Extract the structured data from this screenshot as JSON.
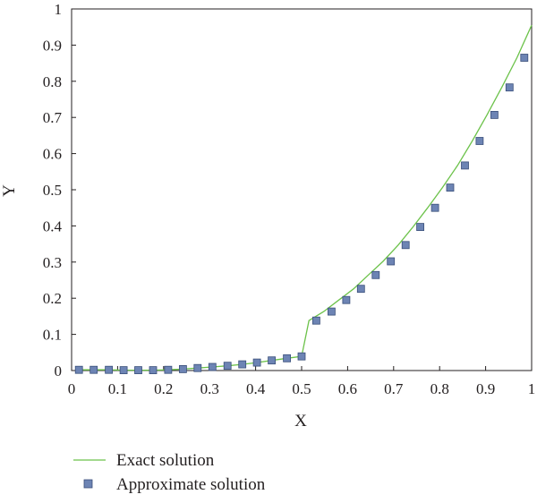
{
  "chart_data": {
    "type": "line",
    "title": "",
    "xlabel": "X",
    "ylabel": "Y",
    "xlim": [
      0,
      1
    ],
    "ylim": [
      0,
      1
    ],
    "x_ticks": [
      "0",
      "0.1",
      "0.2",
      "0.3",
      "0.4",
      "0.5",
      "0.6",
      "0.7",
      "0.8",
      "0.9",
      "1"
    ],
    "y_ticks": [
      "0",
      "0.1",
      "0.2",
      "0.3",
      "0.4",
      "0.5",
      "0.6",
      "0.7",
      "0.8",
      "0.9",
      "1"
    ],
    "grid": false,
    "legend_position": "bottom-left",
    "series": [
      {
        "name": "Exact solution",
        "style": "line",
        "color": "#6cc24a",
        "x": [
          0.016,
          0.048,
          0.081,
          0.113,
          0.145,
          0.177,
          0.21,
          0.242,
          0.274,
          0.306,
          0.339,
          0.371,
          0.403,
          0.435,
          0.468,
          0.5,
          0.516,
          0.548,
          0.581,
          0.613,
          0.645,
          0.677,
          0.71,
          0.742,
          0.774,
          0.806,
          0.839,
          0.871,
          0.903,
          0.935,
          0.968,
          1.0
        ],
        "values": [
          0.002,
          0.002,
          0.002,
          0.001,
          0.001,
          0.001,
          0.002,
          0.004,
          0.007,
          0.01,
          0.013,
          0.017,
          0.022,
          0.028,
          0.034,
          0.039,
          0.138,
          0.163,
          0.195,
          0.226,
          0.264,
          0.302,
          0.347,
          0.397,
          0.45,
          0.506,
          0.567,
          0.635,
          0.707,
          0.783,
          0.865,
          0.955
        ]
      },
      {
        "name": "Approximate solution",
        "style": "marker",
        "color": "#6d84b4",
        "x": [
          0.016,
          0.048,
          0.081,
          0.113,
          0.145,
          0.177,
          0.21,
          0.242,
          0.274,
          0.306,
          0.339,
          0.371,
          0.403,
          0.435,
          0.468,
          0.5,
          0.532,
          0.565,
          0.597,
          0.629,
          0.661,
          0.694,
          0.726,
          0.758,
          0.79,
          0.823,
          0.855,
          0.887,
          0.919,
          0.952,
          0.984
        ],
        "values": [
          0.002,
          0.002,
          0.002,
          0.001,
          0.001,
          0.001,
          0.002,
          0.004,
          0.007,
          0.01,
          0.013,
          0.017,
          0.022,
          0.028,
          0.034,
          0.039,
          0.138,
          0.163,
          0.195,
          0.226,
          0.264,
          0.302,
          0.347,
          0.397,
          0.45,
          0.506,
          0.567,
          0.635,
          0.707,
          0.783,
          0.865
        ]
      }
    ]
  }
}
